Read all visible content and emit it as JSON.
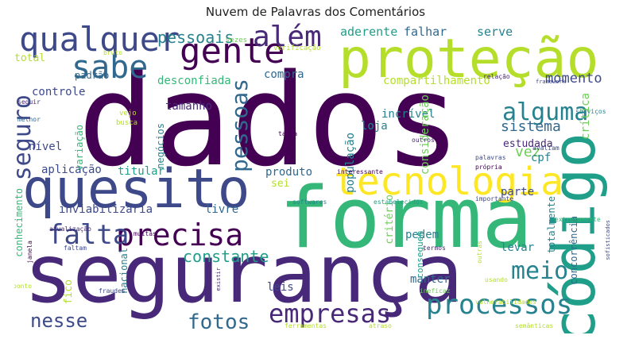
{
  "title": "Nuvem de Palavras dos Comentários",
  "palette": [
    "#440154",
    "#482878",
    "#3e4989",
    "#31688e",
    "#26828e",
    "#1f9e89",
    "#35b779",
    "#6ece58",
    "#b5de2b",
    "#fde725"
  ],
  "words": [
    {
      "text": "dados",
      "color": "#440154"
    },
    {
      "text": "segurança",
      "color": "#482878"
    },
    {
      "text": "forma",
      "color": "#35b779"
    },
    {
      "text": "proteção",
      "color": "#b5de2b"
    },
    {
      "text": "quesito",
      "color": "#3e4989"
    },
    {
      "text": "código",
      "color": "#1f9e89"
    },
    {
      "text": "tecnologia",
      "color": "#fde725"
    },
    {
      "text": "gente",
      "color": "#440154"
    },
    {
      "text": "qualquer",
      "color": "#3e4989"
    },
    {
      "text": "sabe",
      "color": "#31688e"
    },
    {
      "text": "além",
      "color": "#482878"
    },
    {
      "text": "precisa",
      "color": "#440154"
    },
    {
      "text": "processos",
      "color": "#26828e"
    },
    {
      "text": "empresas",
      "color": "#482878"
    },
    {
      "text": "falta",
      "color": "#3e4989"
    },
    {
      "text": "alguma",
      "color": "#26828e"
    },
    {
      "text": "pessoas",
      "color": "#31688e"
    },
    {
      "text": "seguro",
      "color": "#3e4989"
    },
    {
      "text": "meio",
      "color": "#26828e"
    },
    {
      "text": "nesse",
      "color": "#3e4989"
    },
    {
      "text": "fotos",
      "color": "#31688e"
    },
    {
      "text": "constante",
      "color": "#1f9e89"
    },
    {
      "text": "pessoais",
      "color": "#26828e"
    },
    {
      "text": "momento",
      "color": "#3e4989"
    },
    {
      "text": "sistema",
      "color": "#31688e"
    },
    {
      "text": "vez",
      "color": "#6ece58"
    },
    {
      "text": "aderente",
      "color": "#1f9e89"
    },
    {
      "text": "falhar",
      "color": "#31688e"
    },
    {
      "text": "serve",
      "color": "#26828e"
    },
    {
      "text": "compartilhamento",
      "color": "#b5de2b"
    },
    {
      "text": "desconfiada",
      "color": "#35b779"
    },
    {
      "text": "compra",
      "color": "#31688e"
    },
    {
      "text": "controle",
      "color": "#3e4989"
    },
    {
      "text": "tamanho",
      "color": "#482878"
    },
    {
      "text": "incrível",
      "color": "#26828e"
    },
    {
      "text": "crítica",
      "color": "#6ece58"
    },
    {
      "text": "estudada",
      "color": "#482878"
    },
    {
      "text": "cpf",
      "color": "#26828e"
    },
    {
      "text": "loja",
      "color": "#26828e"
    },
    {
      "text": "consideração",
      "color": "#6ece58"
    },
    {
      "text": "população",
      "color": "#26828e"
    },
    {
      "text": "aplicação",
      "color": "#3e4989"
    },
    {
      "text": "titular",
      "color": "#1f9e89"
    },
    {
      "text": "produto",
      "color": "#31688e"
    },
    {
      "text": "inviabilizaria",
      "color": "#3e4989"
    },
    {
      "text": "livre",
      "color": "#31688e"
    },
    {
      "text": "parte",
      "color": "#3e4989"
    },
    {
      "text": "pedem",
      "color": "#26828e"
    },
    {
      "text": "levar",
      "color": "#26828e"
    },
    {
      "text": "manter",
      "color": "#31688e"
    },
    {
      "text": "leis",
      "color": "#3e4989"
    },
    {
      "text": "nível",
      "color": "#3e4989"
    },
    {
      "text": "variação",
      "color": "#35b779"
    },
    {
      "text": "negócios",
      "color": "#26828e"
    },
    {
      "text": "padrão",
      "color": "#31688e"
    },
    {
      "text": "total",
      "color": "#b5de2b"
    },
    {
      "text": "sei",
      "color": "#b5de2b"
    },
    {
      "text": "critério",
      "color": "#6ece58"
    },
    {
      "text": "totalmente",
      "color": "#26828e"
    },
    {
      "text": "concorrência",
      "color": "#31688e"
    },
    {
      "text": "conhecimento",
      "color": "#35b779"
    },
    {
      "text": "fico",
      "color": "#b5de2b"
    },
    {
      "text": "nacional",
      "color": "#26828e"
    },
    {
      "text": "conseguem",
      "color": "#1f9e89"
    },
    {
      "text": "vezes",
      "color": "#6ece58"
    },
    {
      "text": "bruto",
      "color": "#b5de2b"
    },
    {
      "text": "verificação",
      "color": "#b5de2b"
    },
    {
      "text": "relação",
      "color": "#482878"
    },
    {
      "text": "framework",
      "color": "#3e4989"
    },
    {
      "text": "seguir",
      "color": "#482878"
    },
    {
      "text": "melhor",
      "color": "#31688e"
    },
    {
      "text": "vejo",
      "color": "#b5de2b"
    },
    {
      "text": "busca",
      "color": "#b5de2b"
    },
    {
      "text": "tanta",
      "color": "#440154"
    },
    {
      "text": "outros",
      "color": "#482878"
    },
    {
      "text": "serviços",
      "color": "#26828e"
    },
    {
      "text": "avaliam",
      "color": "#3e4989"
    },
    {
      "text": "palavras",
      "color": "#3e4989"
    },
    {
      "text": "própria",
      "color": "#440154"
    },
    {
      "text": "interessante",
      "color": "#440154"
    },
    {
      "text": "softwares",
      "color": "#26828e"
    },
    {
      "text": "estabelecidos",
      "color": "#1f9e89"
    },
    {
      "text": "importante",
      "color": "#3e4989"
    },
    {
      "text": "extremamente",
      "color": "#35b779"
    },
    {
      "text": "sofisticados",
      "color": "#3e4989"
    },
    {
      "text": "atualização",
      "color": "#482878"
    },
    {
      "text": "faltam",
      "color": "#3e4989"
    },
    {
      "text": "muitas",
      "color": "#440154"
    },
    {
      "text": "janela",
      "color": "#440154"
    },
    {
      "text": "termos",
      "color": "#482878"
    },
    {
      "text": "outras",
      "color": "#b5de2b"
    },
    {
      "text": "usando",
      "color": "#b5de2b"
    },
    {
      "text": "ineficaz",
      "color": "#6ece58"
    },
    {
      "text": "existir",
      "color": "#482878"
    },
    {
      "text": "ponto",
      "color": "#b5de2b"
    },
    {
      "text": "fraudes",
      "color": "#3e4989"
    },
    {
      "text": "vulnerabilidades",
      "color": "#b5de2b"
    },
    {
      "text": "ferramentas",
      "color": "#b5de2b"
    },
    {
      "text": "atraso",
      "color": "#b5de2b"
    },
    {
      "text": "semânticas",
      "color": "#b5de2b"
    }
  ]
}
